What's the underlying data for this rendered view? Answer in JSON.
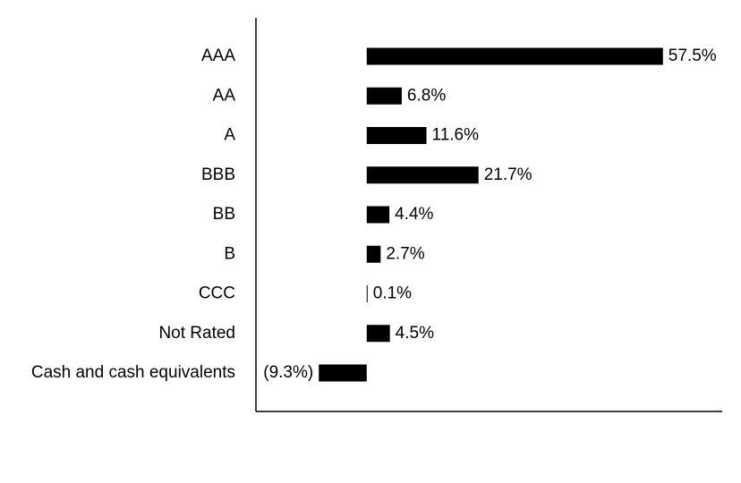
{
  "chart_data": {
    "type": "hbar",
    "categories": [
      "AAA",
      "AA",
      "A",
      "BBB",
      "BB",
      "B",
      "CCC",
      "Not Rated",
      "Cash and cash equivalents"
    ],
    "values": [
      57.5,
      6.8,
      11.6,
      21.7,
      4.4,
      2.7,
      0.1,
      4.5,
      -9.3
    ],
    "value_labels": [
      "57.5%",
      "6.8%",
      "11.6%",
      "21.7%",
      "4.4%",
      "2.7%",
      "0.1%",
      "4.5%",
      "(9.3%)"
    ],
    "color": "#000000",
    "xlim": [
      -21.5,
      69
    ]
  }
}
